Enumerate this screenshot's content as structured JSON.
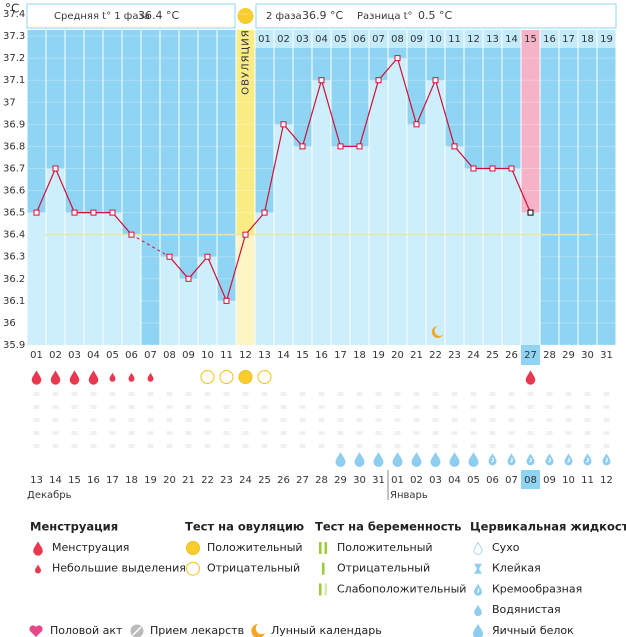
{
  "header": {
    "phase1_label": "Средняя t° 1 фаза",
    "phase1_value": "36.4 °C",
    "phase2_label": "2 фаза",
    "phase2_value": "36.9 °C",
    "diff_label": "Разница t°",
    "diff_value": "0.5 °C"
  },
  "chart_data": {
    "type": "line",
    "y_unit": "°C",
    "categories": [
      "01",
      "02",
      "03",
      "04",
      "05",
      "06",
      "07",
      "08",
      "09",
      "10",
      "11",
      "12",
      "13",
      "14",
      "15",
      "16",
      "17",
      "18",
      "19",
      "20",
      "21",
      "22",
      "23",
      "24",
      "25",
      "26",
      "27",
      "28",
      "29",
      "30",
      "31"
    ],
    "values": [
      36.5,
      36.7,
      36.5,
      36.5,
      36.5,
      36.4,
      null,
      36.3,
      36.2,
      36.3,
      36.1,
      36.4,
      36.5,
      36.9,
      36.8,
      37.1,
      36.8,
      36.8,
      37.1,
      37.2,
      36.9,
      37.1,
      36.8,
      36.7,
      36.7,
      36.7,
      36.5,
      null,
      null,
      null,
      null
    ],
    "color": "#d0103a",
    "ylim": [
      35.9,
      37.4
    ],
    "yticks": [
      35.9,
      36,
      36.1,
      36.2,
      36.3,
      36.4,
      36.5,
      36.6,
      36.7,
      36.8,
      36.9,
      37,
      37.1,
      37.2,
      37.3,
      37.4
    ],
    "cover_line": 36.4,
    "ovulation_day": "12",
    "ovulation_label": "ОВУЛЯЦИЯ",
    "today_day": "27",
    "phase2_days": [
      null,
      null,
      null,
      null,
      null,
      null,
      null,
      null,
      null,
      null,
      null,
      null,
      "01",
      "02",
      "03",
      "04",
      "05",
      "06",
      "07",
      "08",
      "09",
      "10",
      "11",
      "12",
      "13",
      "14",
      "15",
      "16",
      "17",
      "18",
      "19"
    ]
  },
  "symbols": {
    "menstruation": [
      "heavy",
      "heavy",
      "heavy",
      "heavy",
      "light",
      "light",
      "light",
      null,
      null,
      null,
      null,
      null,
      null,
      null,
      null,
      null,
      null,
      null,
      null,
      null,
      null,
      null,
      null,
      null,
      null,
      null,
      "heavy",
      null,
      null,
      null,
      null
    ],
    "ovulation_test": [
      null,
      null,
      null,
      null,
      null,
      null,
      null,
      null,
      null,
      "negative",
      "negative",
      "positive",
      "negative",
      null,
      null,
      null,
      null,
      null,
      null,
      null,
      null,
      null,
      null,
      null,
      null,
      null,
      null,
      null,
      null,
      null,
      null
    ],
    "cervical_fluid": [
      null,
      null,
      null,
      null,
      null,
      null,
      null,
      null,
      null,
      null,
      null,
      null,
      null,
      null,
      null,
      null,
      "watery",
      "watery",
      "watery",
      "watery",
      "watery",
      "watery",
      "watery",
      "watery",
      "creamy",
      "creamy",
      "creamy",
      "creamy",
      "creamy",
      "creamy",
      "creamy"
    ]
  },
  "calendar": {
    "dates": [
      "13",
      "14",
      "15",
      "16",
      "17",
      "18",
      "19",
      "20",
      "21",
      "22",
      "23",
      "24",
      "25",
      "26",
      "27",
      "28",
      "29",
      "30",
      "31",
      "01",
      "02",
      "03",
      "04",
      "05",
      "06",
      "07",
      "08",
      "09",
      "10",
      "11",
      "12"
    ],
    "holiday": [
      false,
      false,
      true,
      true,
      false,
      false,
      false,
      false,
      false,
      true,
      true,
      true,
      false,
      false,
      false,
      false,
      true,
      true,
      false,
      false,
      false,
      false,
      false,
      true,
      true,
      false,
      false,
      false,
      false,
      false,
      true
    ],
    "months": [
      "Декабрь",
      "Январь"
    ],
    "today_date": "08"
  },
  "legend": {
    "sections": [
      {
        "title": "Менструация",
        "items": [
          "Менструация",
          "Небольшие выделения"
        ]
      },
      {
        "title": "Тест на овуляцию",
        "items": [
          "Положительный",
          "Отрицательный"
        ]
      },
      {
        "title": "Тест на беременность",
        "items": [
          "Положительный",
          "Отрицательный",
          "Слабоположительный"
        ]
      },
      {
        "title": "Цервикальная жидкость",
        "items": [
          "Сухо",
          "Клейкая",
          "Кремообразная",
          "Водянистая",
          "Яичный белок"
        ]
      }
    ],
    "other": [
      "Половой акт",
      "Прием лекарств",
      "Лунный календарь"
    ]
  }
}
